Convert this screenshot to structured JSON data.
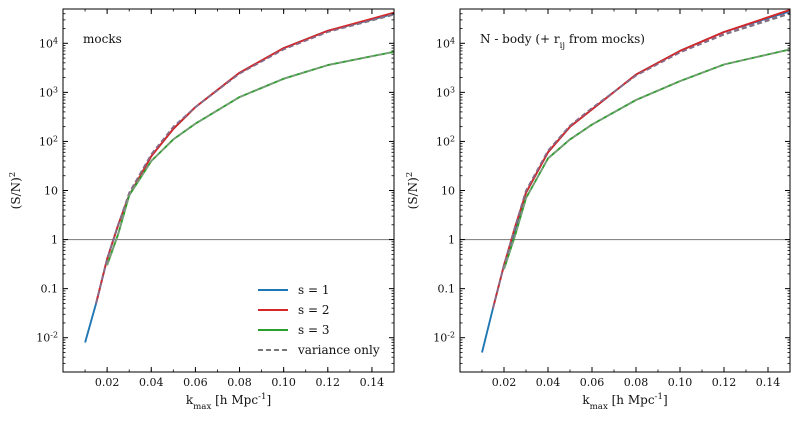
{
  "chart_data": [
    {
      "type": "line",
      "annotation": "mocks",
      "xlabel": "k_max [h Mpc^-1]",
      "ylabel": "(S/N)^2",
      "yscale": "log",
      "xlim": [
        0.0,
        0.15
      ],
      "ylim": [
        0.002,
        50000
      ],
      "x_ticks": [
        0.02,
        0.04,
        0.06,
        0.08,
        0.1,
        0.12,
        0.14
      ],
      "x_tick_labels": [
        "0.02",
        "0.04",
        "0.06",
        "0.08",
        "0.10",
        "0.12",
        "0.14"
      ],
      "y_ticks": [
        0.01,
        0.1,
        1,
        10,
        100,
        1000,
        10000
      ],
      "y_tick_labels": [
        "10^-2",
        "0.1",
        "1",
        "10",
        "10^2",
        "10^3",
        "10^4"
      ],
      "reference_line": {
        "y": 1,
        "color": "#888888"
      },
      "legend": {
        "position": "lower-right",
        "entries": [
          "s = 1",
          "s = 2",
          "s = 3",
          "variance only"
        ]
      },
      "series": [
        {
          "name": "s = 1",
          "color": "#1f77b4",
          "style": "solid",
          "x": [
            0.01,
            0.015,
            0.02,
            0.025,
            0.03,
            0.04,
            0.05,
            0.06,
            0.08,
            0.1,
            0.12,
            0.15
          ],
          "y": [
            0.008,
            0.05,
            0.4,
            2,
            8,
            50,
            180,
            500,
            2500,
            8000,
            18000,
            40000
          ]
        },
        {
          "name": "s = 2",
          "color": "#d62728",
          "style": "solid",
          "x": [
            0.015,
            0.02,
            0.025,
            0.03,
            0.04,
            0.05,
            0.06,
            0.08,
            0.1,
            0.12,
            0.15
          ],
          "y": [
            0.05,
            0.4,
            2,
            8,
            50,
            180,
            500,
            2500,
            8000,
            18000,
            42000
          ]
        },
        {
          "name": "s = 3",
          "color": "#2ca02c",
          "style": "solid",
          "x": [
            0.02,
            0.025,
            0.03,
            0.04,
            0.05,
            0.06,
            0.08,
            0.1,
            0.12,
            0.15
          ],
          "y": [
            0.3,
            1.3,
            8,
            40,
            110,
            230,
            800,
            1900,
            3600,
            6700
          ]
        },
        {
          "name": "variance only",
          "color": "#777777",
          "style": "dashed",
          "x": [
            0.015,
            0.02,
            0.025,
            0.03,
            0.04,
            0.05,
            0.06,
            0.08,
            0.1,
            0.12,
            0.15
          ],
          "y": [
            0.05,
            0.4,
            2,
            9,
            55,
            200,
            500,
            2400,
            7500,
            17000,
            38000
          ]
        },
        {
          "name": "",
          "color": "#8a6a8a",
          "style": "dashed",
          "x": [
            0.015,
            0.02,
            0.025,
            0.03,
            0.04,
            0.05,
            0.06,
            0.08,
            0.1,
            0.12,
            0.15
          ],
          "y": [
            0.05,
            0.4,
            2,
            9,
            55,
            200,
            500,
            2400,
            7500,
            17000,
            40000
          ]
        },
        {
          "name": "",
          "color": "#7f9a7f",
          "style": "dashed",
          "x": [
            0.02,
            0.025,
            0.03,
            0.04,
            0.05,
            0.06,
            0.08,
            0.1,
            0.12,
            0.15
          ],
          "y": [
            0.3,
            1.3,
            8,
            40,
            110,
            230,
            800,
            1900,
            3600,
            6700
          ]
        }
      ]
    },
    {
      "type": "line",
      "annotation": "N - body (+ r_ij from mocks)",
      "xlabel": "k_max [h Mpc^-1]",
      "ylabel": "(S/N)^2",
      "yscale": "log",
      "xlim": [
        0.0,
        0.15
      ],
      "ylim": [
        0.002,
        50000
      ],
      "x_ticks": [
        0.02,
        0.04,
        0.06,
        0.08,
        0.1,
        0.12,
        0.14
      ],
      "x_tick_labels": [
        "0.02",
        "0.04",
        "0.06",
        "0.08",
        "0.10",
        "0.12",
        "0.14"
      ],
      "y_ticks": [
        0.01,
        0.1,
        1,
        10,
        100,
        1000,
        10000
      ],
      "y_tick_labels": [
        "10^-2",
        "0.1",
        "1",
        "10",
        "10^2",
        "10^3",
        "10^4"
      ],
      "reference_line": {
        "y": 1,
        "color": "#888888"
      },
      "series": [
        {
          "name": "s = 1",
          "color": "#1f77b4",
          "style": "solid",
          "x": [
            0.01,
            0.015,
            0.02,
            0.025,
            0.03,
            0.04,
            0.05,
            0.06,
            0.08,
            0.1,
            0.12,
            0.15
          ],
          "y": [
            0.005,
            0.04,
            0.3,
            1.5,
            9,
            60,
            200,
            450,
            2300,
            7000,
            17000,
            45000
          ]
        },
        {
          "name": "s = 2",
          "color": "#d62728",
          "style": "solid",
          "x": [
            0.015,
            0.02,
            0.025,
            0.03,
            0.04,
            0.05,
            0.06,
            0.08,
            0.1,
            0.12,
            0.15
          ],
          "y": [
            0.04,
            0.3,
            1.8,
            9,
            60,
            200,
            450,
            2300,
            7000,
            17000,
            48000
          ]
        },
        {
          "name": "s = 3",
          "color": "#2ca02c",
          "style": "solid",
          "x": [
            0.02,
            0.025,
            0.03,
            0.04,
            0.05,
            0.06,
            0.08,
            0.1,
            0.12,
            0.15
          ],
          "y": [
            0.25,
            1.2,
            7,
            45,
            110,
            220,
            700,
            1700,
            3700,
            7500
          ]
        },
        {
          "name": "variance only",
          "color": "#777777",
          "style": "dashed",
          "x": [
            0.015,
            0.02,
            0.025,
            0.03,
            0.04,
            0.05,
            0.06,
            0.08,
            0.1,
            0.12,
            0.15
          ],
          "y": [
            0.04,
            0.3,
            1.8,
            10,
            65,
            210,
            480,
            2200,
            6500,
            15000,
            40000
          ]
        },
        {
          "name": "",
          "color": "#8a6a8a",
          "style": "dashed",
          "x": [
            0.015,
            0.02,
            0.025,
            0.03,
            0.04,
            0.05,
            0.06,
            0.08,
            0.1,
            0.12,
            0.15
          ],
          "y": [
            0.04,
            0.3,
            1.8,
            10,
            65,
            210,
            480,
            2200,
            6500,
            15500,
            42000
          ]
        },
        {
          "name": "",
          "color": "#7f9a7f",
          "style": "dashed",
          "x": [
            0.02,
            0.025,
            0.03,
            0.04,
            0.05,
            0.06,
            0.08,
            0.1,
            0.12,
            0.15
          ],
          "y": [
            0.25,
            1.2,
            7,
            45,
            110,
            220,
            700,
            1700,
            3700,
            7500
          ]
        }
      ]
    }
  ]
}
